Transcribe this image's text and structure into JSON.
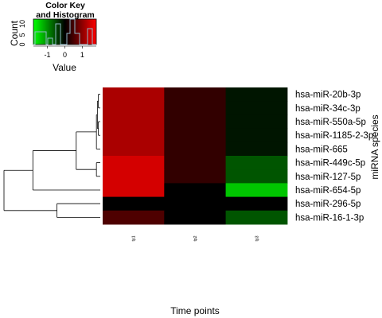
{
  "chart_data": {
    "type": "heatmap",
    "title": "",
    "xlabel": "Time points",
    "ylabel": "miRNA species",
    "columns": [
      "tp1",
      "tp2",
      "tp3"
    ],
    "rows": [
      "hsa-miR-20b-3p",
      "hsa-miR-34c-3p",
      "hsa-miR-550a-5p",
      "hsa-miR-1185-2-3p",
      "hsa-miR-665",
      "hsa-miR-449c-5p",
      "hsa-miR-127-5p",
      "hsa-miR-654-5p",
      "hsa-miR-296-5p",
      "hsa-miR-16-1-3p"
    ],
    "values": [
      [
        1.2,
        0.35,
        -0.15
      ],
      [
        1.2,
        0.35,
        -0.15
      ],
      [
        1.2,
        0.35,
        -0.15
      ],
      [
        1.2,
        0.35,
        -0.15
      ],
      [
        1.2,
        0.35,
        -0.15
      ],
      [
        1.5,
        0.35,
        -0.6
      ],
      [
        1.5,
        0.35,
        -0.6
      ],
      [
        1.5,
        0.0,
        -1.4
      ],
      [
        0.0,
        0.0,
        0.0
      ],
      [
        0.55,
        0.0,
        -0.6
      ]
    ],
    "color_scale": {
      "low": "#00ff00",
      "mid": "#000000",
      "high": "#ff0000",
      "range": [
        -1.8,
        1.8
      ]
    },
    "dendrogram_merges": [
      {
        "left": 0,
        "right": 1,
        "height": 0.02
      },
      {
        "left": 2,
        "right": 3,
        "height": 0.02
      },
      {
        "left": "m0",
        "right": "m1",
        "height": 0.03
      },
      {
        "left": 4,
        "right": "m2",
        "height": 0.04
      },
      {
        "left": 5,
        "right": 6,
        "height": 0.04
      },
      {
        "left": "m3",
        "right": "m4",
        "height": 0.25
      },
      {
        "left": 7,
        "right": "m5",
        "height": 0.7
      },
      {
        "left": 8,
        "right": 9,
        "height": 0.45
      },
      {
        "left": "m6",
        "right": "m7",
        "height": 1.0
      }
    ],
    "color_key": {
      "title_line1": "Color Key",
      "title_line2": "and Histogram",
      "xlabel": "Value",
      "ylabel": "Count",
      "x_ticks": [
        "-1",
        "0",
        "1"
      ],
      "x_tick_values": [
        -1,
        0,
        1
      ],
      "y_ticks": [
        "0",
        "5",
        "10"
      ]
    }
  }
}
